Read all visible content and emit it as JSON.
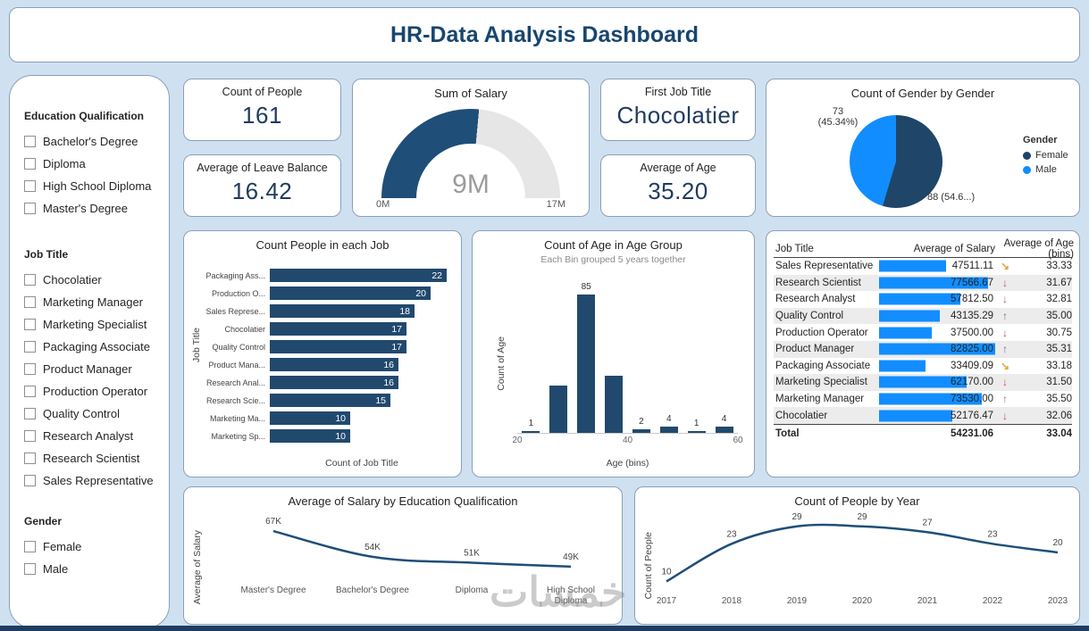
{
  "page": {
    "title": "HR-Data Analysis Dashboard",
    "watermark": "خمسات",
    "colors": {
      "background": "#cfe1f1",
      "navy": "#1f4e79",
      "bar": "#21496e",
      "accent_blue": "#118DFF",
      "gauge_track": "#e6e6e6",
      "arrow_up": "#767676",
      "arrow_down": "#d64550",
      "arrow_mid": "#e8a33e"
    }
  },
  "filters": {
    "education": {
      "label": "Education Qualification",
      "options": [
        "Bachelor's Degree",
        "Diploma",
        "High School Diploma",
        "Master's Degree"
      ]
    },
    "job": {
      "label": "Job Title",
      "options": [
        "Chocolatier",
        "Marketing Manager",
        "Marketing Specialist",
        "Packaging Associate",
        "Product Manager",
        "Production Operator",
        "Quality Control",
        "Research Analyst",
        "Research Scientist",
        "Sales Representative"
      ]
    },
    "gender": {
      "label": "Gender",
      "options": [
        "Female",
        "Male"
      ]
    }
  },
  "cards": {
    "count_people": {
      "title": "Count of People",
      "value": "161"
    },
    "avg_leave": {
      "title": "Average of Leave Balance",
      "value": "16.42"
    },
    "first_job": {
      "title": "First Job Title",
      "value": "Chocolatier"
    },
    "avg_age": {
      "title": "Average of Age",
      "value": "35.20"
    }
  },
  "chart_data": [
    {
      "id": "salary_gauge",
      "type": "gauge",
      "title": "Sum of Salary",
      "value": 9000000,
      "value_label": "9M",
      "min": 0,
      "max": 17000000,
      "min_label": "0M",
      "max_label": "17M"
    },
    {
      "id": "gender_pie",
      "type": "pie",
      "title": "Count of Gender by Gender",
      "legend_title": "Gender",
      "slices": [
        {
          "name": "Female",
          "value": 88,
          "pct": 54.66,
          "callout": "88 (54.6...)",
          "color": "#1f4568"
        },
        {
          "name": "Male",
          "value": 73,
          "pct": 45.34,
          "callout": "73\n(45.34%)",
          "color": "#118DFF"
        }
      ]
    },
    {
      "id": "people_per_job",
      "type": "bar",
      "title": "Count People in each Job",
      "xlabel": "Count of Job Title",
      "ylabel": "Job Title",
      "categories": [
        "Packaging Ass...",
        "Production O...",
        "Sales Represe...",
        "Chocolatier",
        "Quality Control",
        "Product Mana...",
        "Research Anal...",
        "Research Scie...",
        "Marketing Ma...",
        "Marketing Sp..."
      ],
      "values": [
        22,
        20,
        18,
        17,
        17,
        16,
        16,
        15,
        10,
        10
      ],
      "xlim": [
        0,
        22
      ]
    },
    {
      "id": "age_histogram",
      "type": "column",
      "title": "Count of Age in Age Group",
      "subtitle": "Each Bin grouped 5 years together",
      "xlabel": "Age (bins)",
      "ylabel": "Count of Age",
      "bins": [
        20,
        25,
        30,
        35,
        40,
        45,
        50,
        55
      ],
      "values": [
        1,
        29,
        85,
        35,
        2,
        4,
        1,
        4
      ],
      "shown_labels": [
        "1",
        "",
        "85",
        "",
        "2",
        "4",
        "1",
        "4"
      ],
      "x_ticks": [
        "20",
        "40",
        "60"
      ],
      "ylim": [
        0,
        90
      ]
    },
    {
      "id": "salary_table",
      "type": "table",
      "columns": [
        "Job Title",
        "Average of Salary",
        "Average of Age (bins)"
      ],
      "max_salary": 82825,
      "rows": [
        {
          "job": "Sales Representative",
          "salary": "47511.11",
          "salary_value": 47511.11,
          "trend": "mid",
          "age": "33.33"
        },
        {
          "job": "Research Scientist",
          "salary": "77566.67",
          "salary_value": 77566.67,
          "trend": "down",
          "age": "31.67"
        },
        {
          "job": "Research Analyst",
          "salary": "57812.50",
          "salary_value": 57812.5,
          "trend": "down",
          "age": "32.81"
        },
        {
          "job": "Quality Control",
          "salary": "43135.29",
          "salary_value": 43135.29,
          "trend": "up",
          "age": "35.00"
        },
        {
          "job": "Production Operator",
          "salary": "37500.00",
          "salary_value": 37500,
          "trend": "down",
          "age": "30.75"
        },
        {
          "job": "Product Manager",
          "salary": "82825.00",
          "salary_value": 82825,
          "trend": "up",
          "age": "35.31"
        },
        {
          "job": "Packaging Associate",
          "salary": "33409.09",
          "salary_value": 33409.09,
          "trend": "mid",
          "age": "33.18"
        },
        {
          "job": "Marketing Specialist",
          "salary": "62170.00",
          "salary_value": 62170,
          "trend": "down",
          "age": "31.50"
        },
        {
          "job": "Marketing Manager",
          "salary": "73530.00",
          "salary_value": 73530,
          "trend": "up",
          "age": "35.50"
        },
        {
          "job": "Chocolatier",
          "salary": "52176.47",
          "salary_value": 52176.47,
          "trend": "down",
          "age": "32.06"
        }
      ],
      "total": {
        "job": "Total",
        "salary": "54231.06",
        "age": "33.04"
      }
    },
    {
      "id": "salary_by_education",
      "type": "line",
      "title": "Average of Salary by Education Qualification",
      "ylabel": "Average of Salary",
      "categories": [
        "Master's Degree",
        "Bachelor's Degree",
        "Diploma",
        "High School Diploma"
      ],
      "values": [
        67000,
        54000,
        51000,
        49000
      ],
      "labels": [
        "67K",
        "54K",
        "51K",
        "49K"
      ],
      "ylim": [
        44000,
        72000
      ]
    },
    {
      "id": "people_by_year",
      "type": "line",
      "title": "Count of People by Year",
      "ylabel": "Count of People",
      "categories": [
        "2017",
        "2018",
        "2019",
        "2020",
        "2021",
        "2022",
        "2023"
      ],
      "values": [
        10,
        23,
        29,
        29,
        27,
        23,
        20
      ],
      "labels": [
        "10",
        "23",
        "29",
        "29",
        "27",
        "23",
        "20"
      ],
      "ylim": [
        8,
        32
      ]
    }
  ]
}
